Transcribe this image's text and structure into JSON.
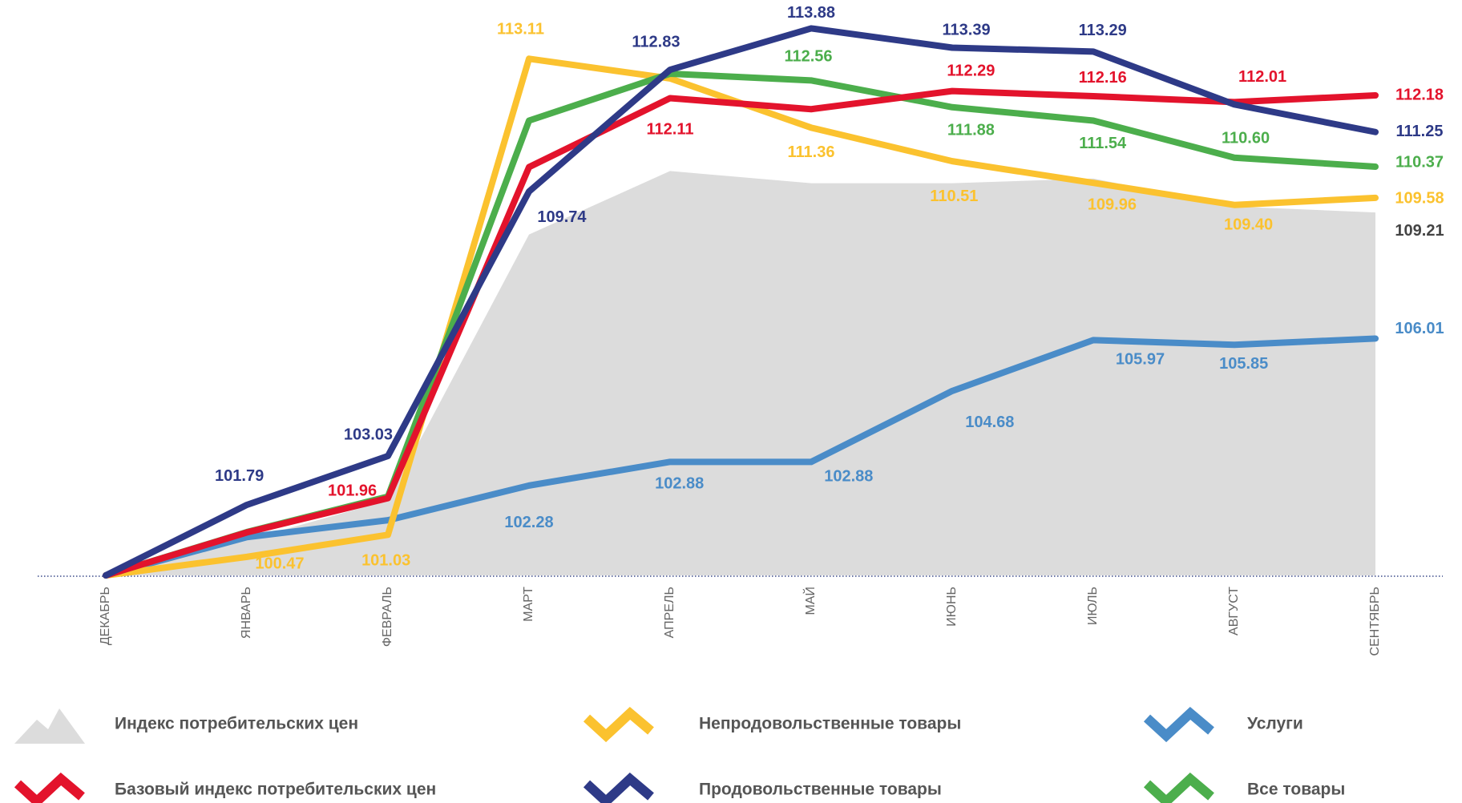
{
  "chart_data": {
    "type": "line",
    "categories": [
      "ДЕКАБРЬ",
      "ЯНВАРЬ",
      "ФЕВРАЛЬ",
      "МАРТ",
      "АПРЕЛЬ",
      "МАЙ",
      "ИЮНЬ",
      "ИЮЛЬ",
      "АВГУСТ",
      "СЕНТЯБРЬ"
    ],
    "ylim": [
      100,
      114.6
    ],
    "series": [
      {
        "name": "Индекс потребительских цен",
        "type": "area",
        "color": "#dcdcdc",
        "values": [
          100,
          100.9,
          101.9,
          108.65,
          110.26,
          109.95,
          109.95,
          110.07,
          109.36,
          109.21
        ],
        "value_labels": [
          null,
          null,
          null,
          null,
          null,
          null,
          null,
          null,
          null,
          "109.21"
        ]
      },
      {
        "name": "Базовый индекс потребительских цен",
        "type": "line",
        "color": "#e3132c",
        "values": [
          100,
          101.09,
          101.96,
          110.36,
          112.11,
          111.83,
          112.29,
          112.16,
          112.01,
          112.18
        ],
        "value_labels": [
          null,
          null,
          "101.96",
          null,
          "112.11",
          null,
          "112.29",
          "112.16",
          "112.01",
          "112.18"
        ]
      },
      {
        "name": "Непродовольственные товары",
        "type": "line",
        "color": "#fbc22f",
        "values": [
          100,
          100.47,
          101.03,
          113.11,
          112.61,
          111.36,
          110.51,
          109.96,
          109.4,
          109.58
        ],
        "value_labels": [
          null,
          "100.47",
          "101.03",
          "113.11",
          null,
          "111.36",
          "110.51",
          "109.96",
          "109.40",
          "109.58"
        ]
      },
      {
        "name": "Продовольственные товары",
        "type": "line",
        "color": "#2e3a87",
        "values": [
          100,
          101.79,
          103.03,
          109.74,
          112.83,
          113.88,
          113.39,
          113.29,
          111.95,
          111.25
        ],
        "value_labels": [
          null,
          "101.79",
          "103.03",
          "109.74",
          "112.83",
          "113.88",
          "113.39",
          "113.29",
          null,
          "111.25"
        ]
      },
      {
        "name": "Услуги",
        "type": "line",
        "color": "#4a8cc8",
        "values": [
          100,
          100.97,
          101.4,
          102.28,
          102.88,
          102.88,
          104.68,
          105.97,
          105.85,
          106.01
        ],
        "value_labels": [
          null,
          null,
          null,
          "102.28",
          "102.88",
          "102.88",
          "104.68",
          "105.97",
          "105.85",
          "106.01"
        ]
      },
      {
        "name": "Все товары",
        "type": "line",
        "color": "#4cae4c",
        "values": [
          100,
          101.1,
          102.0,
          111.54,
          112.73,
          112.56,
          111.88,
          111.54,
          110.6,
          110.37
        ],
        "value_labels": [
          null,
          null,
          null,
          null,
          null,
          "112.56",
          "111.88",
          "111.54",
          "110.60",
          "110.37"
        ]
      }
    ]
  }
}
